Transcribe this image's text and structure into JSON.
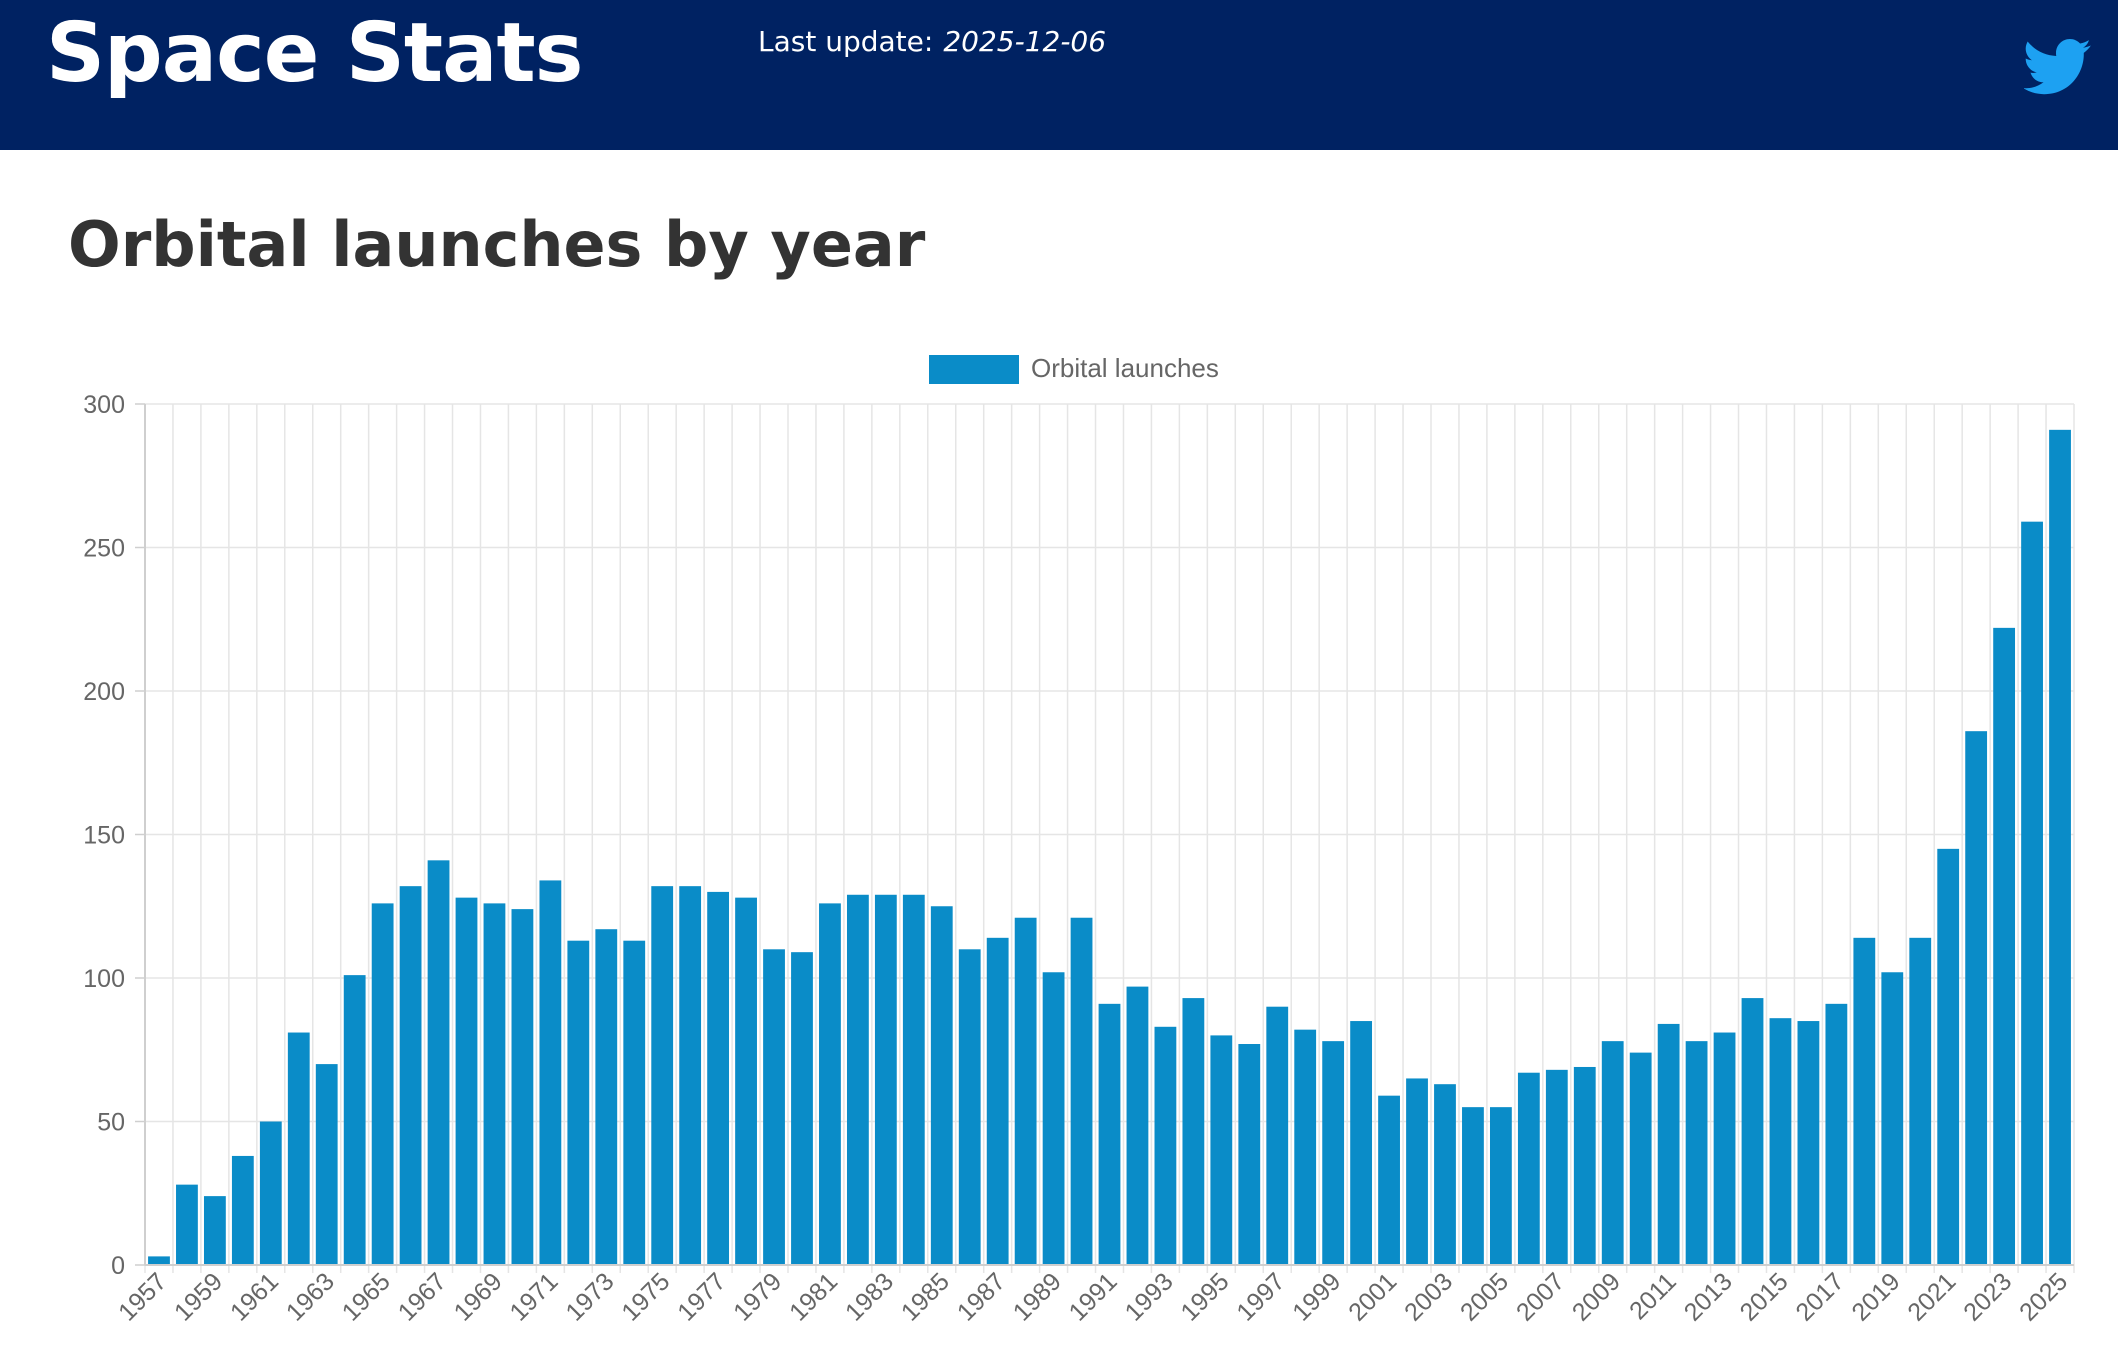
{
  "header": {
    "brand": "Space Stats",
    "update_label": "Last update:",
    "update_date": "2025-12-06",
    "social_icon": "twitter-icon"
  },
  "page": {
    "title": "Orbital launches by year"
  },
  "colors": {
    "header_bg": "#002262",
    "bar": "#0a8cc8",
    "twitter": "#1da1f2"
  },
  "chart_data": {
    "type": "bar",
    "legend": "Orbital launches",
    "legend_position": "top-center",
    "grid": true,
    "ylim": [
      0,
      300
    ],
    "yticks": [
      0,
      50,
      100,
      150,
      200,
      250,
      300
    ],
    "x": [
      1957,
      1958,
      1959,
      1960,
      1961,
      1962,
      1963,
      1964,
      1965,
      1966,
      1967,
      1968,
      1969,
      1970,
      1971,
      1972,
      1973,
      1974,
      1975,
      1976,
      1977,
      1978,
      1979,
      1980,
      1981,
      1982,
      1983,
      1984,
      1985,
      1986,
      1987,
      1988,
      1989,
      1990,
      1991,
      1992,
      1993,
      1994,
      1995,
      1996,
      1997,
      1998,
      1999,
      2000,
      2001,
      2002,
      2003,
      2004,
      2005,
      2006,
      2007,
      2008,
      2009,
      2010,
      2011,
      2012,
      2013,
      2014,
      2015,
      2016,
      2017,
      2018,
      2019,
      2020,
      2021,
      2022,
      2023,
      2024,
      2025
    ],
    "values": [
      3,
      28,
      24,
      38,
      50,
      81,
      70,
      101,
      126,
      132,
      141,
      128,
      126,
      124,
      134,
      113,
      117,
      113,
      132,
      132,
      130,
      128,
      110,
      109,
      126,
      129,
      129,
      129,
      125,
      110,
      114,
      121,
      102,
      121,
      91,
      97,
      83,
      93,
      80,
      77,
      90,
      82,
      78,
      85,
      59,
      65,
      63,
      55,
      55,
      67,
      68,
      69,
      78,
      74,
      84,
      78,
      81,
      93,
      86,
      85,
      91,
      114,
      102,
      114,
      145,
      186,
      222,
      259,
      291
    ],
    "xtick_labels": [
      "1957",
      "1959",
      "1961",
      "1963",
      "1965",
      "1967",
      "1969",
      "1971",
      "1973",
      "1975",
      "1977",
      "1979",
      "1981",
      "1983",
      "1985",
      "1987",
      "1989",
      "1991",
      "1993",
      "1995",
      "1997",
      "1999",
      "2001",
      "2003",
      "2005",
      "2007",
      "2009",
      "2011",
      "2013",
      "2015",
      "2017",
      "2019",
      "2021",
      "2023",
      "2025"
    ]
  }
}
